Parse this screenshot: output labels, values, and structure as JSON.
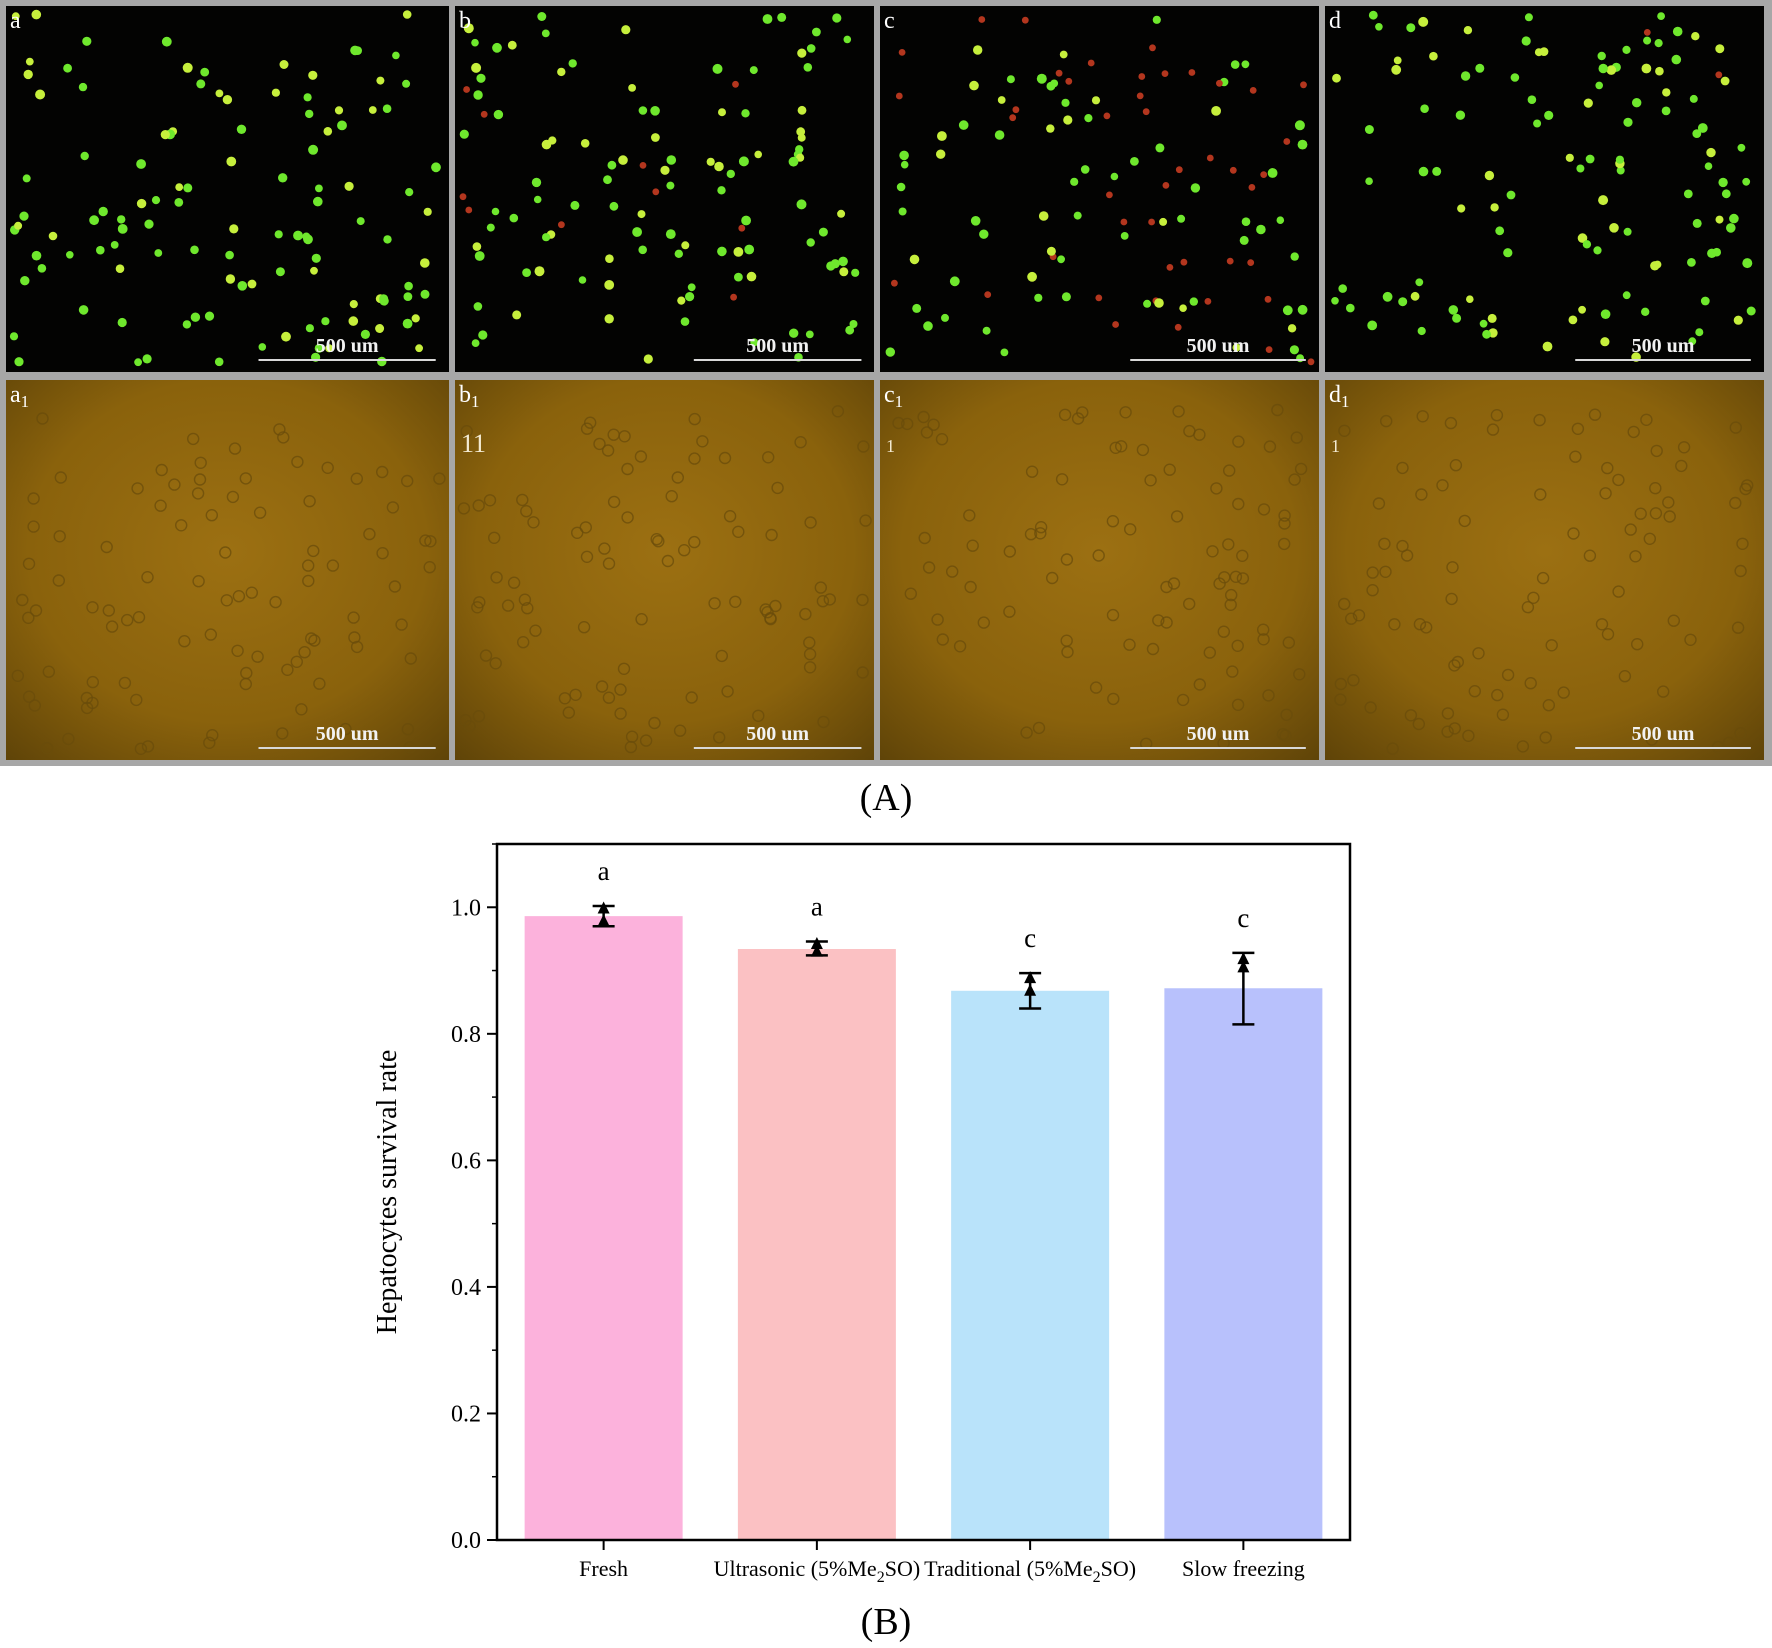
{
  "figure": {
    "caption_a": "(A)",
    "caption_b": "(B)"
  },
  "micrographs": {
    "scale_bar_label": "500 um",
    "panels": [
      {
        "label": "a",
        "sub": "",
        "kind": "fluorescence",
        "red_fraction": 0.0
      },
      {
        "label": "b",
        "sub": "",
        "kind": "fluorescence",
        "red_fraction": 0.05
      },
      {
        "label": "c",
        "sub": "",
        "kind": "fluorescence",
        "red_fraction": 0.35
      },
      {
        "label": "d",
        "sub": "",
        "kind": "fluorescence",
        "red_fraction": 0.03
      },
      {
        "label": "a",
        "sub": "1",
        "kind": "brightfield",
        "extra_mark": ""
      },
      {
        "label": "b",
        "sub": "1",
        "kind": "brightfield",
        "extra_mark": "11"
      },
      {
        "label": "c",
        "sub": "1",
        "kind": "brightfield",
        "extra_mark": "1"
      },
      {
        "label": "d",
        "sub": "1",
        "kind": "brightfield",
        "extra_mark": "1"
      }
    ]
  },
  "chart_data": {
    "type": "bar",
    "title": "",
    "ylabel": "Hepatocytes survival rate",
    "xlabel": "",
    "ylim": [
      0.0,
      1.1
    ],
    "yticks": [
      0.0,
      0.2,
      0.4,
      0.6,
      0.8,
      1.0
    ],
    "ytick_labels": [
      "0.0",
      "0.2",
      "0.4",
      "0.6",
      "0.8",
      "1.0"
    ],
    "categories": [
      {
        "pre": "Fresh",
        "sub": "",
        "post": ""
      },
      {
        "pre": "Ultrasonic (5%Me",
        "sub": "2",
        "post": "SO)"
      },
      {
        "pre": "Traditional (5%Me",
        "sub": "2",
        "post": "SO)"
      },
      {
        "pre": "Slow freezing",
        "sub": "",
        "post": ""
      }
    ],
    "values": [
      0.986,
      0.934,
      0.868,
      0.872
    ],
    "error_low": [
      0.97,
      0.924,
      0.84,
      0.815
    ],
    "error_high": [
      1.002,
      0.946,
      0.896,
      0.928
    ],
    "points": [
      [
        0.998,
        0.978
      ],
      [
        0.942,
        0.93
      ],
      [
        0.888,
        0.868
      ],
      [
        0.918,
        0.905
      ]
    ],
    "significance": [
      "a",
      "a",
      "c",
      "c"
    ],
    "colors": [
      "#fcb2dc",
      "#fbc1c3",
      "#b9e3fa",
      "#b8c1fc"
    ],
    "grid": false,
    "legend": "none"
  }
}
